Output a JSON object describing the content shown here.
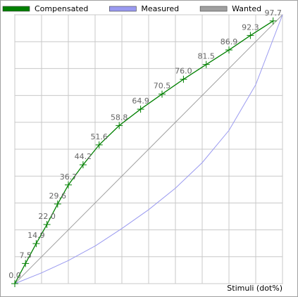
{
  "chart_data": {
    "type": "line",
    "x_label": "Stimuli (dot%)",
    "xlim": [
      0,
      100
    ],
    "ylim": [
      0,
      100
    ],
    "xticks": [
      0,
      10,
      20,
      30,
      40,
      50,
      60,
      70,
      80,
      90,
      100
    ],
    "yticks": [
      0,
      10,
      20,
      30,
      40,
      50,
      60,
      70,
      80,
      90,
      100
    ],
    "grid": true,
    "legend": "top",
    "series": [
      {
        "name": "Compensated",
        "color": "#008000",
        "marker": "+",
        "x": [
          0,
          4,
          8,
          12,
          16,
          20,
          25.5,
          31.5,
          39,
          47,
          55,
          63,
          71.5,
          80,
          88,
          96.5
        ],
        "values": [
          0,
          7.5,
          14.9,
          22,
          29.6,
          36.7,
          44.2,
          51.6,
          58.8,
          64.9,
          70.5,
          76,
          81.5,
          86.9,
          92.3,
          97.7
        ],
        "value_labels": [
          "0.0",
          "7.5",
          "14.9",
          "22.0",
          "29.6",
          "36.7",
          "44.2",
          "51.6",
          "58.8",
          "64.9",
          "70.5",
          "76.0",
          "81.5",
          "86.9",
          "92.3",
          "97.7"
        ]
      },
      {
        "name": "Measured",
        "color": "#9a9af0",
        "x": [
          0,
          10,
          20,
          30,
          40,
          50,
          60,
          70,
          80,
          90,
          100
        ],
        "values": [
          0,
          4,
          8.6,
          14,
          20.5,
          27.5,
          35.5,
          45,
          57,
          74,
          100
        ]
      },
      {
        "name": "Wanted",
        "color": "#a0a0a0",
        "x": [
          0,
          100
        ],
        "values": [
          0,
          100
        ]
      }
    ]
  }
}
